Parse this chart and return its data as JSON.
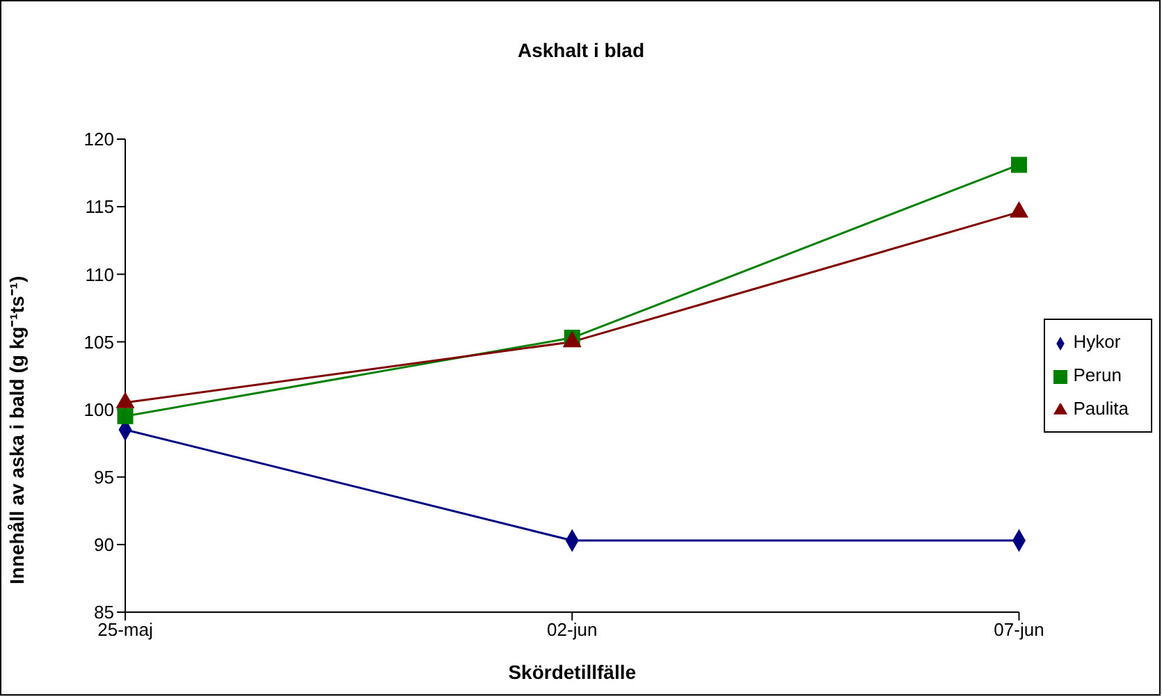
{
  "chart_data": {
    "type": "line",
    "title": "Askhalt i blad",
    "xlabel": "Skördetillfälle",
    "ylabel": "Innehåll av aska i bald (g kg⁻¹ts⁻¹)",
    "categories": [
      "25-maj",
      "02-jun",
      "07-jun"
    ],
    "series": [
      {
        "name": "Hykor",
        "color": "#000080",
        "marker": "diamond",
        "values": [
          98.5,
          90.3,
          90.3
        ]
      },
      {
        "name": "Perun",
        "color": "#008000",
        "marker": "square",
        "values": [
          99.5,
          105.3,
          118.1
        ]
      },
      {
        "name": "Paulita",
        "color": "#800000",
        "marker": "triangle",
        "values": [
          100.5,
          105,
          114.6
        ]
      }
    ],
    "ylim": [
      85,
      120
    ],
    "yticks": [
      85,
      90,
      95,
      100,
      105,
      110,
      115,
      120
    ],
    "grid": false,
    "legend": "right",
    "line_style": "solid"
  }
}
